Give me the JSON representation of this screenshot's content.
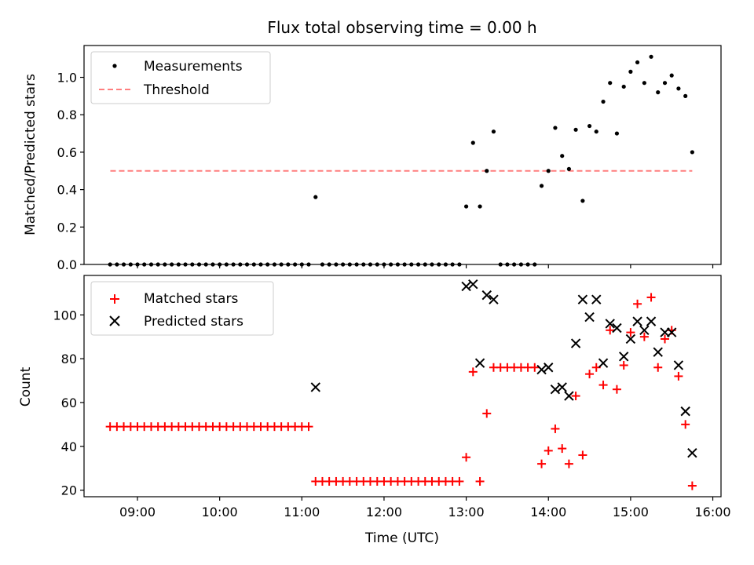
{
  "figure": {
    "title": "Flux total observing time = 0.00 h",
    "xlabel": "Time (UTC)",
    "x_tick_labels": [
      "09:00",
      "10:00",
      "11:00",
      "12:00",
      "13:00",
      "14:00",
      "15:00",
      "16:00"
    ],
    "x_ticks_hours": [
      9,
      10,
      11,
      12,
      13,
      14,
      15,
      16
    ],
    "xlim_hours": [
      8.35,
      16.1
    ]
  },
  "colors": {
    "measurements": "#000000",
    "threshold": "#ff7f7f",
    "matched": "#ff0000",
    "predicted": "#000000"
  },
  "chart_data": [
    {
      "type": "scatter",
      "ylabel": "Matched/Predicted stars",
      "ylim": [
        0,
        1.17
      ],
      "y_ticks": [
        0.0,
        0.2,
        0.4,
        0.6,
        0.8,
        1.0
      ],
      "y_tick_labels": [
        "0.0",
        "0.2",
        "0.4",
        "0.6",
        "0.8",
        "1.0"
      ],
      "legend_position": "top-left",
      "threshold": {
        "name": "Threshold",
        "value": 0.5,
        "x_range_hours": [
          8.67,
          15.75
        ]
      },
      "series": [
        {
          "name": "Measurements",
          "x_hours": [
            8.667,
            8.75,
            8.833,
            8.917,
            9.0,
            9.083,
            9.167,
            9.25,
            9.333,
            9.417,
            9.5,
            9.583,
            9.667,
            9.75,
            9.833,
            9.917,
            10.0,
            10.083,
            10.167,
            10.25,
            10.333,
            10.417,
            10.5,
            10.583,
            10.667,
            10.75,
            10.833,
            10.917,
            11.0,
            11.083,
            11.167,
            11.25,
            11.333,
            11.417,
            11.5,
            11.583,
            11.667,
            11.75,
            11.833,
            11.917,
            12.0,
            12.083,
            12.167,
            12.25,
            12.333,
            12.417,
            12.5,
            12.583,
            12.667,
            12.75,
            12.833,
            12.917,
            13.0,
            13.083,
            13.167,
            13.25,
            13.333,
            13.417,
            13.5,
            13.583,
            13.667,
            13.75,
            13.833,
            13.917,
            14.0,
            14.083,
            14.167,
            14.25,
            14.333,
            14.417,
            14.5,
            14.583,
            14.667,
            14.75,
            14.833,
            14.917,
            15.0,
            15.083,
            15.167,
            15.25,
            15.333,
            15.417,
            15.5,
            15.583,
            15.667,
            15.75
          ],
          "values": [
            0,
            0,
            0,
            0,
            0,
            0,
            0,
            0,
            0,
            0,
            0,
            0,
            0,
            0,
            0,
            0,
            0,
            0,
            0,
            0,
            0,
            0,
            0,
            0,
            0,
            0,
            0,
            0,
            0,
            0,
            0.36,
            0,
            0,
            0,
            0,
            0,
            0,
            0,
            0,
            0,
            0,
            0,
            0,
            0,
            0,
            0,
            0,
            0,
            0,
            0,
            0,
            0,
            0.31,
            0.65,
            0.31,
            0.5,
            0.71,
            0,
            0,
            0,
            0,
            0,
            0,
            0.42,
            0.5,
            0.73,
            0.58,
            0.51,
            0.72,
            0.34,
            0.74,
            0.71,
            0.87,
            0.97,
            0.7,
            0.95,
            1.03,
            1.08,
            0.97,
            1.11,
            0.92,
            0.97,
            1.01,
            0.94,
            0.9,
            0.6
          ]
        }
      ]
    },
    {
      "type": "scatter",
      "ylabel": "Count",
      "ylim": [
        17,
        118
      ],
      "y_ticks": [
        20,
        40,
        60,
        80,
        100
      ],
      "y_tick_labels": [
        "20",
        "40",
        "60",
        "80",
        "100"
      ],
      "legend_position": "top-left",
      "series": [
        {
          "name": "Matched stars",
          "marker": "plus",
          "x_hours": [
            8.667,
            8.75,
            8.833,
            8.917,
            9.0,
            9.083,
            9.167,
            9.25,
            9.333,
            9.417,
            9.5,
            9.583,
            9.667,
            9.75,
            9.833,
            9.917,
            10.0,
            10.083,
            10.167,
            10.25,
            10.333,
            10.417,
            10.5,
            10.583,
            10.667,
            10.75,
            10.833,
            10.917,
            11.0,
            11.083,
            11.167,
            11.25,
            11.333,
            11.417,
            11.5,
            11.583,
            11.667,
            11.75,
            11.833,
            11.917,
            12.0,
            12.083,
            12.167,
            12.25,
            12.333,
            12.417,
            12.5,
            12.583,
            12.667,
            12.75,
            12.833,
            12.917,
            13.0,
            13.083,
            13.167,
            13.25,
            13.333,
            13.417,
            13.5,
            13.583,
            13.667,
            13.75,
            13.833,
            13.917,
            14.0,
            14.083,
            14.167,
            14.25,
            14.333,
            14.417,
            14.5,
            14.583,
            14.667,
            14.75,
            14.833,
            14.917,
            15.0,
            15.083,
            15.167,
            15.25,
            15.333,
            15.417,
            15.5,
            15.583,
            15.667,
            15.75
          ],
          "values": [
            49,
            49,
            49,
            49,
            49,
            49,
            49,
            49,
            49,
            49,
            49,
            49,
            49,
            49,
            49,
            49,
            49,
            49,
            49,
            49,
            49,
            49,
            49,
            49,
            49,
            49,
            49,
            49,
            49,
            49,
            24,
            24,
            24,
            24,
            24,
            24,
            24,
            24,
            24,
            24,
            24,
            24,
            24,
            24,
            24,
            24,
            24,
            24,
            24,
            24,
            24,
            24,
            35,
            74,
            24,
            55,
            76,
            76,
            76,
            76,
            76,
            76,
            76,
            32,
            38,
            48,
            39,
            32,
            63,
            36,
            73,
            76,
            68,
            93,
            66,
            77,
            92,
            105,
            90,
            108,
            76,
            89,
            93,
            72,
            50,
            22
          ]
        },
        {
          "name": "Predicted stars",
          "marker": "x",
          "x_hours": [
            11.167,
            13.0,
            13.083,
            13.167,
            13.25,
            13.333,
            13.917,
            14.0,
            14.083,
            14.167,
            14.25,
            14.333,
            14.417,
            14.5,
            14.583,
            14.667,
            14.75,
            14.833,
            14.917,
            15.0,
            15.083,
            15.167,
            15.25,
            15.333,
            15.417,
            15.5,
            15.583,
            15.667,
            15.75
          ],
          "values": [
            67,
            113,
            114,
            78,
            109,
            107,
            75,
            76,
            66,
            67,
            63,
            87,
            107,
            99,
            107,
            78,
            96,
            94,
            81,
            89,
            97,
            93,
            97,
            83,
            92,
            92,
            77,
            56,
            37
          ]
        }
      ]
    }
  ]
}
